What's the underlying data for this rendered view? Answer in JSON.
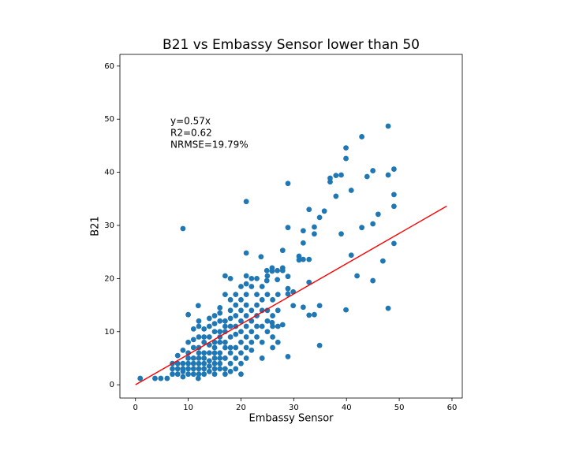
{
  "chart_data": {
    "type": "scatter",
    "title": "B21 vs Embassy Sensor lower than 50",
    "x_label": "Embassy Sensor",
    "y_label": "B21",
    "annotations": [
      "y=0.57x",
      "R2=0.62",
      "NRMSE=19.79%"
    ],
    "xlim": [
      -2.95,
      61.95
    ],
    "ylim": [
      -2.5,
      62.2
    ],
    "xticks": [
      0,
      10,
      20,
      30,
      40,
      50,
      60
    ],
    "yticks": [
      0,
      10,
      20,
      30,
      40,
      50,
      60
    ],
    "series": [
      {
        "color": "#1f77b4",
        "x": [
          0.9,
          3.7,
          4.8,
          6,
          9,
          21,
          28.9,
          47.9,
          42.9,
          39.9,
          39.9,
          36.9,
          38,
          39,
          36.9,
          40.9,
          38,
          43.9,
          45,
          49,
          47.9,
          49,
          49,
          35.8,
          34.9,
          32.9,
          46,
          28.9,
          33.9,
          33.9,
          31.8,
          39,
          42.9,
          45,
          31.8,
          49,
          21,
          23.8,
          27.9,
          31,
          31,
          31.8,
          32.9,
          40.9,
          25.9,
          25.9,
          26.9,
          27.9,
          27.9,
          24.9,
          46.9,
          42,
          45,
          32.9,
          28.9,
          24.9,
          26.9,
          28.9,
          29.9,
          28.9,
          29.9,
          31.8,
          34.9,
          39.9,
          47.9,
          32.9,
          33.9,
          27.9,
          25.9,
          34.9,
          28.9,
          11.9,
          10,
          11.9,
          7,
          7,
          7,
          8,
          8,
          8,
          8,
          9,
          9,
          9,
          9,
          9,
          10,
          10,
          10,
          10,
          10,
          10,
          11,
          11,
          11,
          11,
          11,
          11,
          11,
          12,
          12,
          12,
          12,
          12,
          12,
          12,
          12,
          12,
          13,
          13,
          13,
          13,
          13,
          13,
          13,
          13,
          14,
          14,
          14,
          14,
          14,
          14,
          14,
          14,
          15,
          15,
          15,
          15,
          15,
          15,
          15,
          15,
          15,
          15,
          16,
          16,
          16,
          16,
          16,
          16,
          16,
          16,
          16,
          16,
          17,
          17,
          17,
          17,
          17,
          17,
          17,
          17,
          17,
          17,
          18,
          18,
          18,
          18,
          18,
          18,
          18,
          18,
          18,
          18,
          19,
          19,
          19,
          19,
          19,
          19,
          19,
          19,
          20,
          20,
          20,
          20,
          20,
          20,
          20,
          20,
          20,
          21,
          21,
          21,
          21,
          21,
          21,
          21,
          21,
          21,
          22,
          22,
          22,
          22,
          22,
          22,
          22,
          23,
          23,
          23,
          23,
          23,
          23,
          24,
          24,
          24,
          24,
          24,
          24,
          25,
          25,
          25,
          25,
          25,
          26,
          26,
          26,
          26,
          26,
          27,
          27,
          27,
          27
        ],
        "values": [
          1.2,
          1.2,
          1.2,
          1.2,
          29.4,
          34.5,
          37.9,
          48.7,
          46.7,
          44.6,
          42.6,
          38.9,
          39.4,
          39.5,
          38.2,
          36.6,
          35.5,
          39.2,
          40.3,
          40.6,
          39.5,
          35.8,
          33.6,
          32.7,
          31.5,
          33,
          32.1,
          29.6,
          29.7,
          28.4,
          29,
          28.4,
          29.6,
          30.3,
          26.7,
          26.6,
          24.8,
          24.1,
          25.3,
          24.2,
          23.5,
          23.6,
          23.6,
          24.4,
          22,
          21.4,
          21.5,
          22,
          21.5,
          21.5,
          23.3,
          20.5,
          19.6,
          19.3,
          20.4,
          19.6,
          19.8,
          18.1,
          17.5,
          17.1,
          14.9,
          14.6,
          14.9,
          14.1,
          14.4,
          13.1,
          13.2,
          11.3,
          11.7,
          7.4,
          5.3,
          1.2,
          13.2,
          14.9,
          2,
          3,
          4,
          2,
          3,
          4,
          5.5,
          1.5,
          2.5,
          3,
          4,
          6.5,
          2,
          3,
          4,
          5,
          6,
          8,
          2,
          3,
          4,
          5,
          7,
          8.5,
          10.5,
          2,
          3,
          4,
          5,
          6,
          7,
          9,
          11,
          12,
          2,
          3,
          4,
          5,
          6,
          8,
          9,
          10.5,
          2.5,
          3.5,
          4.5,
          6,
          7.5,
          9,
          11,
          12.5,
          2,
          3,
          4,
          5,
          6,
          7,
          8,
          10,
          11.5,
          13,
          3,
          4,
          5,
          6,
          8,
          9,
          10,
          12,
          13.5,
          14.5,
          2,
          3,
          5,
          7,
          8,
          10,
          11,
          12,
          17,
          20.5,
          2.5,
          4,
          6,
          7,
          9,
          11,
          12.5,
          14,
          16,
          20,
          3,
          5,
          7,
          9.5,
          11,
          13,
          15,
          17,
          2,
          4,
          6,
          8,
          10,
          12,
          14,
          16,
          18.5,
          5,
          7,
          9,
          11,
          13,
          15,
          17,
          19,
          20.5,
          6.5,
          8,
          10,
          12,
          14,
          18.5,
          20,
          9,
          11,
          13,
          15,
          17,
          20,
          5,
          8,
          11,
          14,
          16,
          18.5,
          10,
          12,
          14,
          17,
          20.5,
          7,
          9,
          11,
          13,
          16,
          8,
          11,
          14,
          17
        ]
      }
    ],
    "fit_line": {
      "color": "#ff0000",
      "x": [
        0,
        59
      ],
      "values": [
        0,
        33.63
      ]
    }
  }
}
